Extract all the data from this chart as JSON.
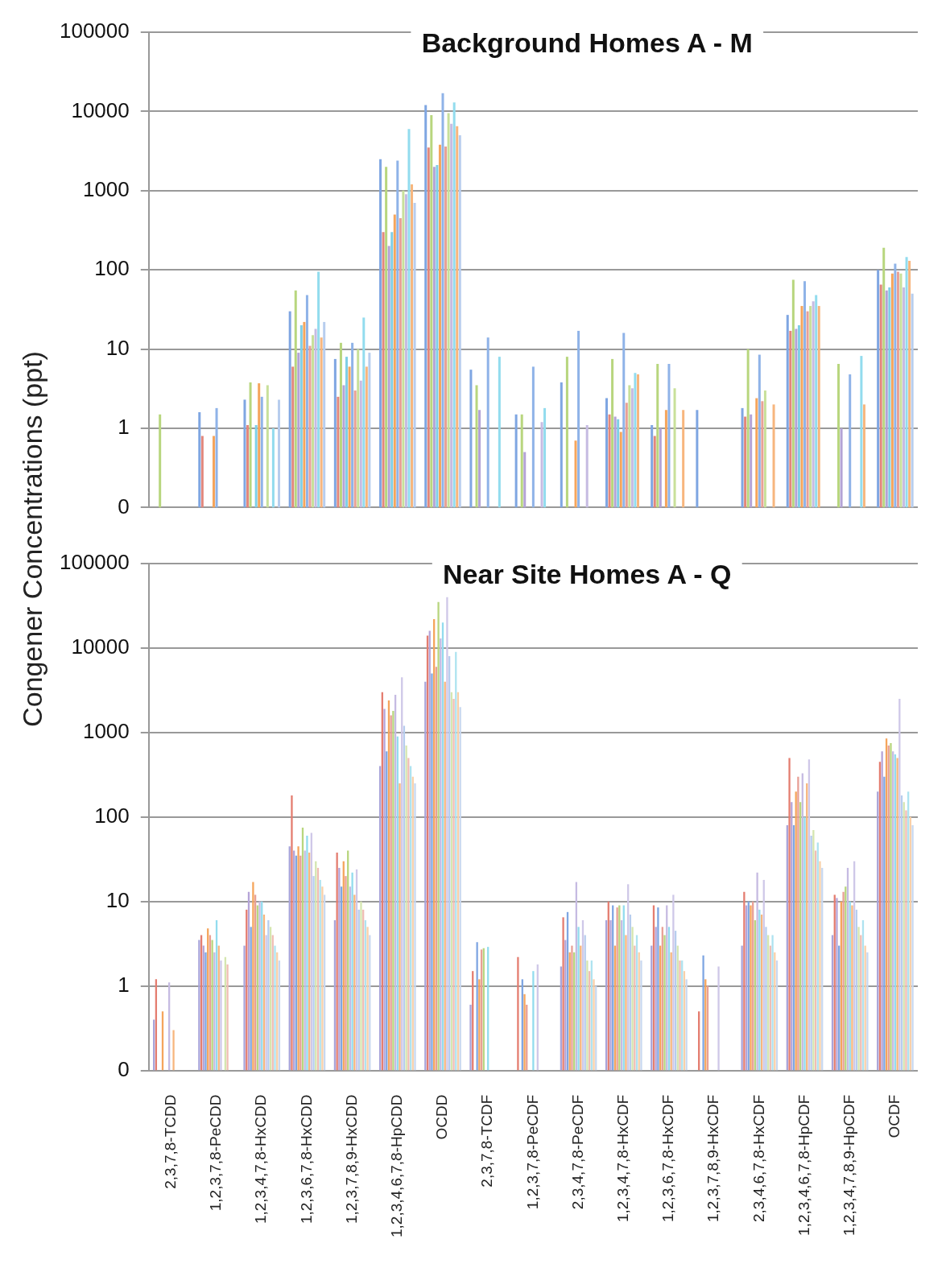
{
  "chart_data": [
    {
      "type": "bar",
      "title": "Background Homes A - M",
      "ylabel": "Congener Concentrations (ppt)",
      "log": "y",
      "grid": "y",
      "tick_labels": "y",
      "ylim": [
        0.1,
        100000
      ],
      "yticks": [
        {
          "value": 0.1,
          "label": "0"
        },
        1,
        10,
        100,
        1000,
        10000,
        100000
      ],
      "categories": [
        null,
        null,
        null,
        null,
        null,
        null,
        null,
        null,
        null,
        null,
        null,
        null,
        null,
        null,
        null,
        null,
        null
      ],
      "series": [
        {
          "color": "#7fa6e2",
          "values": [
            null,
            1.6,
            2.3,
            30,
            7.5,
            2500,
            12000,
            5.5,
            1.5,
            3.8,
            2.4,
            1.1,
            1.7,
            1.8,
            27,
            null,
            100
          ]
        },
        {
          "color": "#e2877c",
          "values": [
            null,
            0.8,
            1.1,
            6,
            2.5,
            300,
            3500,
            null,
            null,
            null,
            1.5,
            0.8,
            null,
            1.4,
            17,
            null,
            65
          ]
        },
        {
          "color": "#b8d67e",
          "values": [
            1.5,
            null,
            3.8,
            55,
            12,
            2000,
            9000,
            3.5,
            1.5,
            8,
            7.5,
            6.5,
            null,
            10,
            75,
            6.5,
            190
          ]
        },
        {
          "color": "#b3a3d6",
          "values": [
            null,
            null,
            null,
            9,
            3.5,
            200,
            2000,
            1.7,
            0.5,
            null,
            1.4,
            1,
            null,
            1.5,
            18,
            1,
            55
          ]
        },
        {
          "color": "#7fcfe6",
          "values": [
            null,
            null,
            1.1,
            20,
            8,
            300,
            2100,
            null,
            null,
            null,
            1.3,
            null,
            null,
            null,
            20,
            null,
            60
          ]
        },
        {
          "color": "#f5a55c",
          "values": [
            null,
            0.8,
            3.7,
            22,
            6,
            500,
            3800,
            null,
            null,
            0.7,
            0.9,
            1.7,
            null,
            2.4,
            35,
            null,
            90
          ]
        },
        {
          "color": "#8fb3e8",
          "values": [
            null,
            1.8,
            2.5,
            48,
            12,
            2400,
            17000,
            14,
            6,
            17,
            16,
            6.5,
            null,
            8.5,
            72,
            4.8,
            120
          ]
        },
        {
          "color": "#e8a096",
          "values": [
            null,
            null,
            null,
            11,
            3,
            450,
            3600,
            null,
            null,
            null,
            2.1,
            null,
            null,
            2.2,
            30,
            null,
            95
          ]
        },
        {
          "color": "#c8e09a",
          "values": [
            null,
            null,
            3.5,
            15,
            10,
            1000,
            9500,
            null,
            null,
            null,
            3.5,
            3.2,
            null,
            3,
            35,
            null,
            90
          ]
        },
        {
          "color": "#c6bbe2",
          "values": [
            null,
            null,
            null,
            18,
            4,
            900,
            7000,
            null,
            1.2,
            1.1,
            3.2,
            null,
            null,
            null,
            40,
            null,
            60
          ]
        },
        {
          "color": "#92dcee",
          "values": [
            null,
            null,
            1,
            95,
            25,
            6000,
            13000,
            8,
            1.8,
            null,
            5,
            null,
            null,
            null,
            48,
            8.2,
            145
          ]
        },
        {
          "color": "#f7b67e",
          "values": [
            null,
            null,
            null,
            14,
            6,
            1200,
            6500,
            null,
            null,
            null,
            4.8,
            1.7,
            null,
            2,
            35,
            2,
            130
          ]
        },
        {
          "color": "#b7cdee",
          "values": [
            null,
            null,
            2.3,
            22,
            9,
            700,
            5000,
            null,
            null,
            null,
            null,
            null,
            null,
            null,
            null,
            null,
            50
          ]
        }
      ]
    },
    {
      "type": "bar",
      "title": "Near Site Homes A - Q",
      "log": "y",
      "grid": "y",
      "ylim": [
        0.1,
        100000
      ],
      "yticks": [
        {
          "value": 0.1,
          "label": "0"
        },
        1,
        10,
        100,
        1000,
        10000,
        100000
      ],
      "categories": [
        "2,3,7,8-TCDD",
        "1,2,3,7,8-PeCDD",
        "1,2,3,4,7,8-HxCDD",
        "1,2,3,6,7,8-HxCDD",
        "1,2,3,7,8,9-HxCDD",
        "1,2,3,4,6,7,8-HpCDD",
        "OCDD",
        "2,3,7,8-TCDF",
        "1,2,3,7,8-PeCDF",
        "2,3,4,7,8-PeCDF",
        "1,2,3,4,7,8-HxCDF",
        "1,2,3,6,7,8-HxCDF",
        "1,2,3,7,8,9-HxCDF",
        "2,3,4,6,7,8-HxCDF",
        "1,2,3,4,6,7,8-HpCDF",
        "1,2,3,4,7,8,9-HpCDF",
        "OCDF"
      ],
      "series": [
        {
          "color": "#a9a4d9",
          "values": [
            0.4,
            3.5,
            3,
            45,
            6,
            400,
            4000,
            0.6,
            null,
            1.7,
            6,
            3,
            null,
            3,
            80,
            4,
            200
          ]
        },
        {
          "color": "#e47d70",
          "values": [
            1.2,
            4,
            8,
            180,
            38,
            3000,
            14000,
            1.5,
            2.2,
            6.5,
            10,
            9,
            0.5,
            13,
            500,
            12,
            450
          ]
        },
        {
          "color": "#b5a4d8",
          "values": [
            null,
            3,
            13,
            40,
            25,
            1900,
            16000,
            null,
            null,
            3.5,
            6,
            5,
            null,
            9,
            150,
            11,
            600
          ]
        },
        {
          "color": "#7fa6e2",
          "values": [
            null,
            2.5,
            5,
            35,
            15,
            600,
            5000,
            3.3,
            1.2,
            7.5,
            9,
            8.5,
            2.3,
            10,
            80,
            3,
            300
          ]
        },
        {
          "color": "#f5a55c",
          "values": [
            0.5,
            4.8,
            17,
            45,
            30,
            2400,
            22000,
            1.2,
            0.8,
            2.5,
            3,
            3,
            1.2,
            9,
            200,
            10,
            850
          ]
        },
        {
          "color": "#e8a096",
          "values": [
            null,
            4,
            12,
            35,
            20,
            1600,
            6000,
            2.7,
            0.6,
            3,
            8.5,
            5,
            1,
            10,
            300,
            13,
            700
          ]
        },
        {
          "color": "#b8d67e",
          "values": [
            null,
            3.5,
            9,
            75,
            40,
            1800,
            35000,
            2.8,
            null,
            2.5,
            9,
            4,
            null,
            6,
            150,
            15,
            750
          ]
        },
        {
          "color": "#c6bbe2",
          "values": [
            1.1,
            2.5,
            10,
            40,
            15,
            2800,
            13000,
            null,
            null,
            17,
            6,
            9,
            null,
            22,
            330,
            25,
            600
          ]
        },
        {
          "color": "#92dcee",
          "values": [
            null,
            6,
            10,
            60,
            22,
            900,
            20000,
            2.9,
            1.5,
            5,
            9,
            5,
            null,
            8,
            100,
            10,
            550
          ]
        },
        {
          "color": "#f7b67e",
          "values": [
            0.3,
            3,
            7,
            38,
            12,
            250,
            4000,
            null,
            null,
            3,
            4,
            2.5,
            null,
            7,
            250,
            9,
            500
          ]
        },
        {
          "color": "#cfc8e8",
          "values": [
            null,
            2,
            4,
            65,
            24,
            4500,
            40000,
            null,
            1.8,
            6,
            16,
            12,
            1.7,
            18,
            480,
            30,
            2500
          ]
        },
        {
          "color": "#b7cdee",
          "values": [
            null,
            null,
            6,
            20,
            8,
            1200,
            8000,
            null,
            null,
            4,
            7,
            4.5,
            null,
            5,
            60,
            8,
            180
          ]
        },
        {
          "color": "#d5e6b0",
          "values": [
            null,
            2.2,
            5,
            30,
            10,
            700,
            3000,
            null,
            null,
            2,
            5,
            3,
            null,
            4,
            70,
            5,
            150
          ]
        },
        {
          "color": "#f0bdb4",
          "values": [
            null,
            1.8,
            4,
            25,
            8,
            500,
            2500,
            null,
            null,
            1.5,
            3,
            2,
            null,
            3,
            40,
            4,
            120
          ]
        },
        {
          "color": "#aee3f0",
          "values": [
            null,
            null,
            3,
            18,
            6,
            400,
            9000,
            null,
            null,
            2,
            4,
            2,
            null,
            4,
            50,
            6,
            200
          ]
        },
        {
          "color": "#f9d0a8",
          "values": [
            null,
            null,
            2.5,
            15,
            5,
            300,
            3000,
            null,
            null,
            1.2,
            2.5,
            1.5,
            null,
            2.5,
            30,
            3,
            100
          ]
        },
        {
          "color": "#c8d8f0",
          "values": [
            null,
            null,
            2,
            12,
            4,
            250,
            2000,
            null,
            null,
            1,
            2,
            1.2,
            null,
            2,
            25,
            2.5,
            80
          ]
        }
      ]
    }
  ]
}
